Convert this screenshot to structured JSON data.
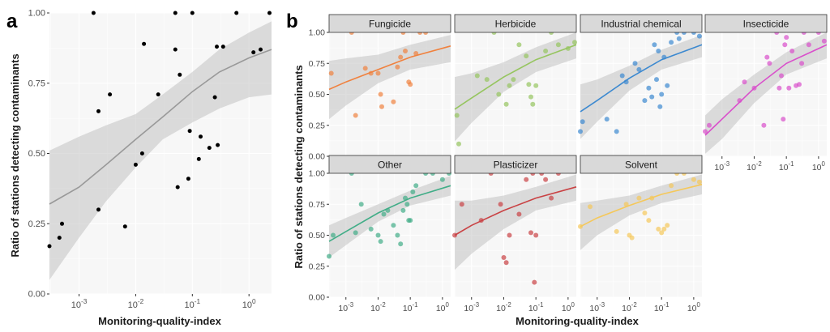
{
  "figure": {
    "panel_a_label": "a",
    "panel_b_label": "b",
    "x_axis_title": "Monitoring-quality-index",
    "y_axis_title": "Ratio of stations detecting contaminants",
    "y_tick_labels": [
      "0.00",
      "0.25",
      "0.50",
      "0.75",
      "1.00"
    ],
    "x_tick_labels": [
      {
        "base": "10",
        "exp": "-3"
      },
      {
        "base": "10",
        "exp": "-2"
      },
      {
        "base": "10",
        "exp": "-1"
      },
      {
        "base": "10",
        "exp": "0"
      }
    ],
    "colors": {
      "panel_background": "#f7f7f7",
      "grid": "#ffffff",
      "ribbon": "#bdbdbd",
      "strip_fill": "#d9d9d9",
      "strip_border": "#333333",
      "overall_line": "#999999",
      "overall_points": "#000000",
      "Fungicide": "#f0813e",
      "Herbicide": "#96c55f",
      "Industrial chemical": "#3c89d0",
      "Insecticide": "#d94fcb",
      "Other": "#41ad87",
      "Plasticizer": "#c94244",
      "Solvent": "#f5c85a"
    }
  },
  "chart_data": [
    {
      "type": "scatter",
      "panel": "a",
      "xlabel": "Monitoring-quality-index",
      "ylabel": "Ratio of stations detecting contaminants",
      "x_scale": "log10",
      "xlim": [
        0.0003,
        2.5
      ],
      "ylim": [
        0,
        1
      ],
      "grid": true,
      "points": [
        [
          0.0003,
          0.17
        ],
        [
          0.00045,
          0.2
        ],
        [
          0.0005,
          0.25
        ],
        [
          0.0018,
          1.0
        ],
        [
          0.0022,
          0.3
        ],
        [
          0.0022,
          0.65
        ],
        [
          0.0035,
          0.71
        ],
        [
          0.0065,
          0.24
        ],
        [
          0.01,
          0.46
        ],
        [
          0.013,
          0.5
        ],
        [
          0.014,
          0.89
        ],
        [
          0.025,
          0.71
        ],
        [
          0.05,
          1.0
        ],
        [
          0.05,
          0.87
        ],
        [
          0.055,
          0.38
        ],
        [
          0.06,
          0.78
        ],
        [
          0.085,
          0.41
        ],
        [
          0.09,
          0.58
        ],
        [
          0.1,
          1.0
        ],
        [
          0.13,
          0.48
        ],
        [
          0.14,
          0.56
        ],
        [
          0.2,
          0.52
        ],
        [
          0.25,
          0.7
        ],
        [
          0.27,
          0.88
        ],
        [
          0.28,
          0.53
        ],
        [
          0.35,
          0.88
        ],
        [
          0.6,
          1.0
        ],
        [
          1.2,
          0.86
        ],
        [
          1.6,
          0.87
        ],
        [
          2.3,
          1.0
        ]
      ],
      "fit": {
        "x": [
          0.0003,
          0.001,
          0.003,
          0.01,
          0.03,
          0.1,
          0.3,
          1.0,
          2.5
        ],
        "y": [
          0.32,
          0.38,
          0.46,
          0.55,
          0.63,
          0.72,
          0.79,
          0.84,
          0.87
        ],
        "lower": [
          0.05,
          0.2,
          0.33,
          0.45,
          0.55,
          0.61,
          0.66,
          0.7,
          0.71
        ],
        "upper": [
          0.51,
          0.56,
          0.6,
          0.64,
          0.71,
          0.79,
          0.87,
          0.93,
          0.97
        ]
      }
    },
    {
      "type": "scatter",
      "panel": "b",
      "xlabel": "Monitoring-quality-index",
      "ylabel": "Ratio of stations detecting contaminants",
      "x_scale": "log10",
      "xlim": [
        0.0003,
        1.8
      ],
      "ylim": [
        0,
        1
      ],
      "grid": true,
      "facets": [
        {
          "name": "Fungicide",
          "points": [
            [
              0.00035,
              0.67
            ],
            [
              0.002,
              0.33
            ],
            [
              0.004,
              0.71
            ],
            [
              0.006,
              0.67
            ],
            [
              0.0015,
              1.0
            ],
            [
              0.01,
              0.67
            ],
            [
              0.012,
              0.5
            ],
            [
              0.013,
              0.4
            ],
            [
              0.03,
              0.44
            ],
            [
              0.04,
              0.72
            ],
            [
              0.05,
              0.8
            ],
            [
              0.06,
              1.0
            ],
            [
              0.07,
              0.85
            ],
            [
              0.09,
              0.6
            ],
            [
              0.1,
              0.58
            ],
            [
              0.15,
              0.83
            ],
            [
              0.2,
              1.0
            ],
            [
              0.3,
              1.0
            ]
          ],
          "fit": {
            "x": [
              0.0003,
              0.001,
              0.01,
              0.1,
              1.8
            ],
            "y": [
              0.54,
              0.6,
              0.7,
              0.8,
              0.89
            ],
            "lower": [
              0.3,
              0.41,
              0.59,
              0.7,
              0.76
            ],
            "upper": [
              0.77,
              0.79,
              0.82,
              0.9,
              0.98
            ]
          }
        },
        {
          "name": "Herbicide",
          "points": [
            [
              0.00035,
              0.33
            ],
            [
              0.0004,
              0.1
            ],
            [
              0.0015,
              0.65
            ],
            [
              0.003,
              0.62
            ],
            [
              0.005,
              1.0
            ],
            [
              0.007,
              0.5
            ],
            [
              0.012,
              0.42
            ],
            [
              0.015,
              0.57
            ],
            [
              0.02,
              0.62
            ],
            [
              0.03,
              0.9
            ],
            [
              0.05,
              0.81
            ],
            [
              0.06,
              0.58
            ],
            [
              0.07,
              0.48
            ],
            [
              0.08,
              0.42
            ],
            [
              0.1,
              0.57
            ],
            [
              0.2,
              0.85
            ],
            [
              0.3,
              1.0
            ],
            [
              0.5,
              0.9
            ],
            [
              1.0,
              0.87
            ],
            [
              1.6,
              0.92
            ]
          ],
          "fit": {
            "x": [
              0.0003,
              0.001,
              0.01,
              0.1,
              1.8
            ],
            "y": [
              0.38,
              0.47,
              0.64,
              0.78,
              0.9
            ],
            "lower": [
              0.12,
              0.27,
              0.52,
              0.68,
              0.79
            ],
            "upper": [
              0.64,
              0.67,
              0.76,
              0.88,
              1.0
            ]
          }
        },
        {
          "name": "Industrial chemical",
          "points": [
            [
              0.0003,
              0.2
            ],
            [
              0.00035,
              0.28
            ],
            [
              0.002,
              0.3
            ],
            [
              0.004,
              0.2
            ],
            [
              0.006,
              0.65
            ],
            [
              0.008,
              0.6
            ],
            [
              0.015,
              0.75
            ],
            [
              0.02,
              0.7
            ],
            [
              0.03,
              0.45
            ],
            [
              0.04,
              0.55
            ],
            [
              0.05,
              0.48
            ],
            [
              0.06,
              0.9
            ],
            [
              0.07,
              0.62
            ],
            [
              0.08,
              0.85
            ],
            [
              0.09,
              0.4
            ],
            [
              0.1,
              0.5
            ],
            [
              0.12,
              0.8
            ],
            [
              0.15,
              0.57
            ],
            [
              0.2,
              0.92
            ],
            [
              0.3,
              1.0
            ],
            [
              0.35,
              0.95
            ],
            [
              0.5,
              1.0
            ],
            [
              1.0,
              1.0
            ],
            [
              1.5,
              0.97
            ]
          ],
          "fit": {
            "x": [
              0.0003,
              0.001,
              0.01,
              0.1,
              1.8
            ],
            "y": [
              0.36,
              0.45,
              0.63,
              0.78,
              0.9
            ],
            "lower": [
              0.14,
              0.28,
              0.53,
              0.7,
              0.8
            ],
            "upper": [
              0.58,
              0.62,
              0.73,
              0.86,
              0.98
            ]
          }
        },
        {
          "name": "Insecticide",
          "points": [
            [
              0.0003,
              0.2
            ],
            [
              0.0004,
              0.25
            ],
            [
              0.0035,
              0.45
            ],
            [
              0.005,
              0.6
            ],
            [
              0.01,
              0.55
            ],
            [
              0.02,
              0.25
            ],
            [
              0.025,
              0.8
            ],
            [
              0.03,
              0.75
            ],
            [
              0.05,
              1.0
            ],
            [
              0.06,
              0.55
            ],
            [
              0.07,
              0.65
            ],
            [
              0.08,
              0.3
            ],
            [
              0.09,
              0.9
            ],
            [
              0.1,
              0.96
            ],
            [
              0.12,
              0.55
            ],
            [
              0.15,
              0.85
            ],
            [
              0.2,
              0.57
            ],
            [
              0.25,
              0.58
            ],
            [
              0.3,
              0.75
            ],
            [
              0.35,
              1.0
            ],
            [
              0.5,
              0.9
            ],
            [
              1.0,
              1.0
            ],
            [
              1.5,
              0.93
            ]
          ],
          "fit": {
            "x": [
              0.0003,
              0.001,
              0.01,
              0.1,
              1.8
            ],
            "y": [
              0.17,
              0.3,
              0.55,
              0.75,
              0.9
            ],
            "lower": [
              0.02,
              0.14,
              0.43,
              0.66,
              0.79
            ],
            "upper": [
              0.33,
              0.46,
              0.66,
              0.84,
              1.0
            ]
          }
        },
        {
          "name": "Other",
          "points": [
            [
              0.0003,
              0.33
            ],
            [
              0.0004,
              0.5
            ],
            [
              0.0015,
              1.0
            ],
            [
              0.002,
              0.52
            ],
            [
              0.003,
              0.75
            ],
            [
              0.006,
              0.55
            ],
            [
              0.01,
              0.5
            ],
            [
              0.012,
              0.45
            ],
            [
              0.015,
              0.67
            ],
            [
              0.02,
              0.7
            ],
            [
              0.03,
              0.58
            ],
            [
              0.04,
              0.5
            ],
            [
              0.05,
              0.43
            ],
            [
              0.06,
              0.7
            ],
            [
              0.07,
              0.8
            ],
            [
              0.08,
              0.75
            ],
            [
              0.09,
              0.62
            ],
            [
              0.1,
              0.62
            ],
            [
              0.12,
              0.85
            ],
            [
              0.15,
              0.9
            ],
            [
              0.3,
              1.0
            ],
            [
              0.5,
              1.0
            ],
            [
              1.0,
              0.95
            ],
            [
              1.6,
              1.0
            ]
          ],
          "fit": {
            "x": [
              0.0003,
              0.001,
              0.01,
              0.1,
              1.8
            ],
            "y": [
              0.45,
              0.53,
              0.68,
              0.8,
              0.9
            ],
            "lower": [
              0.32,
              0.42,
              0.61,
              0.74,
              0.82
            ],
            "upper": [
              0.58,
              0.64,
              0.75,
              0.86,
              0.98
            ]
          }
        },
        {
          "name": "Plasticizer",
          "points": [
            [
              0.0003,
              0.5
            ],
            [
              0.0005,
              0.75
            ],
            [
              0.002,
              0.62
            ],
            [
              0.004,
              1.0
            ],
            [
              0.008,
              0.75
            ],
            [
              0.01,
              0.32
            ],
            [
              0.012,
              0.28
            ],
            [
              0.015,
              0.5
            ],
            [
              0.03,
              0.67
            ],
            [
              0.05,
              0.95
            ],
            [
              0.07,
              0.52
            ],
            [
              0.08,
              1.0
            ],
            [
              0.09,
              0.12
            ],
            [
              0.1,
              0.5
            ],
            [
              0.15,
              1.0
            ],
            [
              0.2,
              0.95
            ],
            [
              0.3,
              0.8
            ],
            [
              0.5,
              1.0
            ]
          ],
          "fit": {
            "x": [
              0.0003,
              0.001,
              0.01,
              0.1,
              1.8
            ],
            "y": [
              0.5,
              0.58,
              0.7,
              0.8,
              0.89
            ],
            "lower": [
              0.22,
              0.35,
              0.55,
              0.7,
              0.78
            ],
            "upper": [
              0.78,
              0.78,
              0.82,
              0.89,
              0.99
            ]
          }
        },
        {
          "name": "Solvent",
          "points": [
            [
              0.0003,
              0.57
            ],
            [
              0.0006,
              0.73
            ],
            [
              0.004,
              0.53
            ],
            [
              0.008,
              0.75
            ],
            [
              0.01,
              0.5
            ],
            [
              0.012,
              0.48
            ],
            [
              0.02,
              0.8
            ],
            [
              0.03,
              0.68
            ],
            [
              0.04,
              0.62
            ],
            [
              0.05,
              0.8
            ],
            [
              0.08,
              0.55
            ],
            [
              0.1,
              0.52
            ],
            [
              0.12,
              0.55
            ],
            [
              0.15,
              0.58
            ],
            [
              0.2,
              0.9
            ],
            [
              0.3,
              1.0
            ],
            [
              0.5,
              1.0
            ],
            [
              1.0,
              0.95
            ],
            [
              1.5,
              0.93
            ]
          ],
          "fit": {
            "x": [
              0.0003,
              0.001,
              0.01,
              0.1,
              1.8
            ],
            "y": [
              0.57,
              0.64,
              0.74,
              0.83,
              0.91
            ],
            "lower": [
              0.38,
              0.5,
              0.66,
              0.76,
              0.83
            ],
            "upper": [
              0.76,
              0.78,
              0.82,
              0.9,
              0.99
            ]
          }
        }
      ]
    }
  ]
}
